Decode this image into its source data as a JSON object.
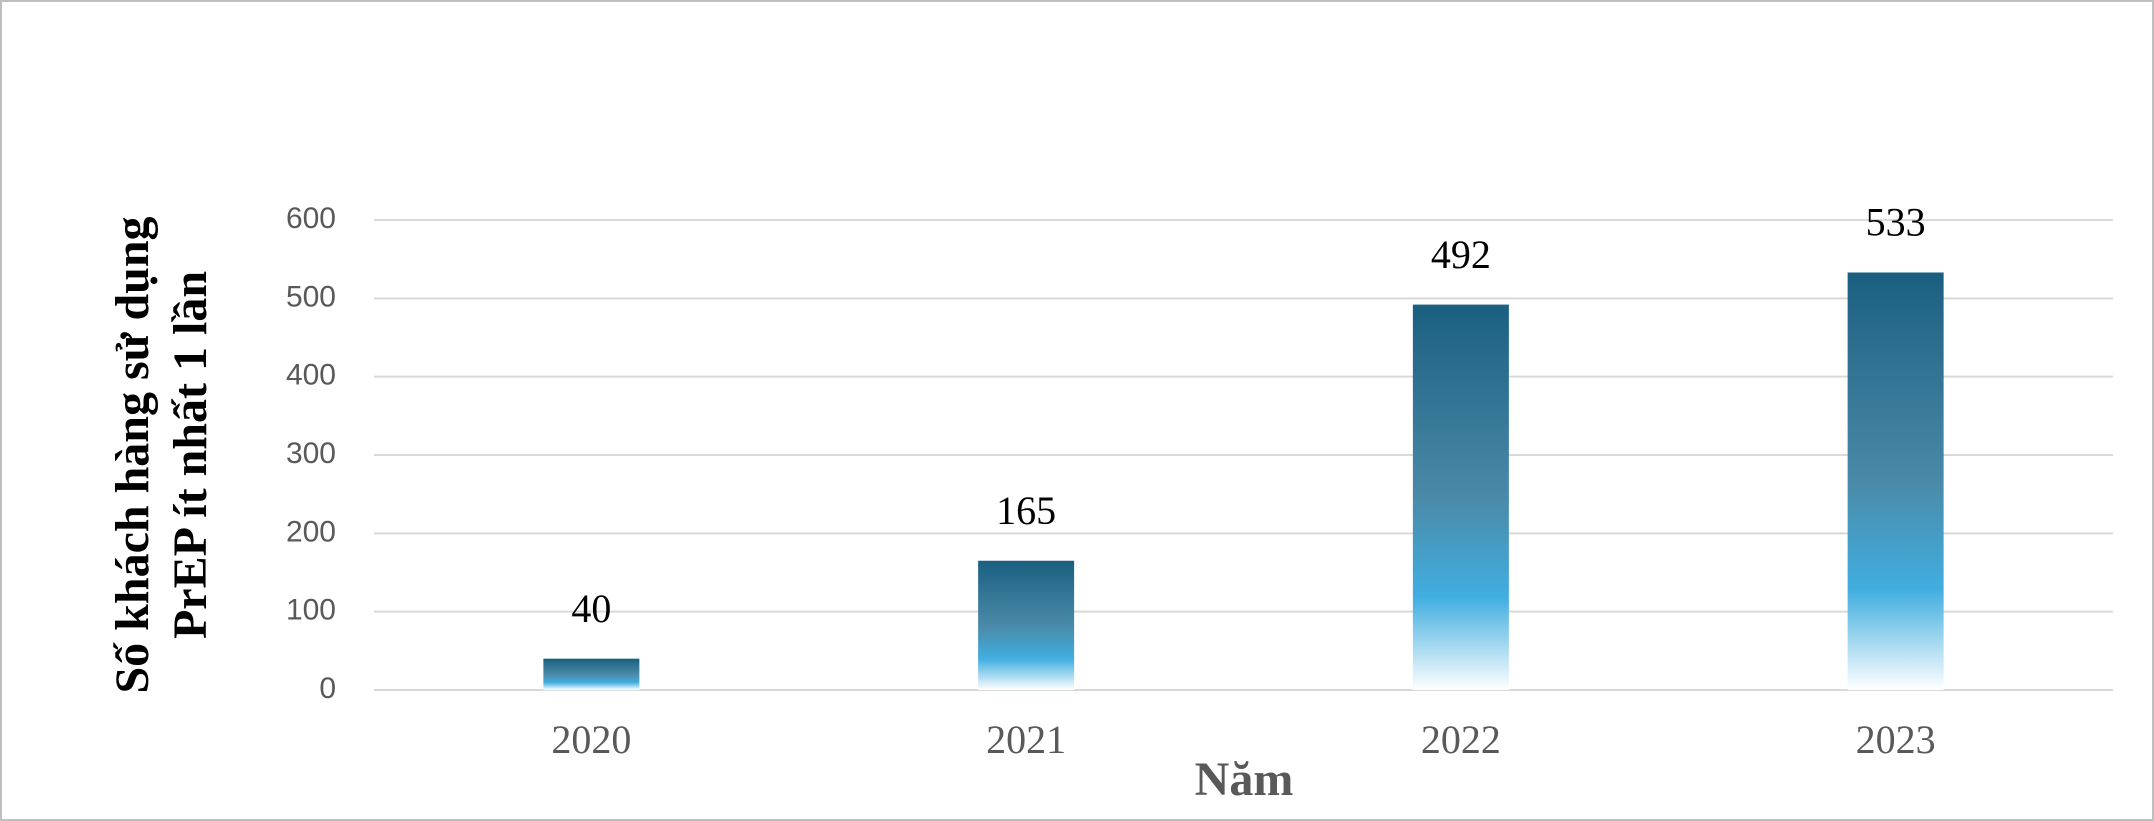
{
  "chart_data": {
    "type": "bar",
    "x_label": "Năm",
    "y_label": [
      "Số khách hàng sử dụng",
      "PrEP ít nhất 1 lần"
    ],
    "categories": [
      "2020",
      "2021",
      "2022",
      "2023"
    ],
    "values": [
      40,
      165,
      492,
      533
    ],
    "color": "#1b5f80",
    "ylim": [
      0,
      600
    ],
    "yticks": [
      0,
      100,
      200,
      300,
      400,
      500,
      600
    ],
    "grid": true
  }
}
